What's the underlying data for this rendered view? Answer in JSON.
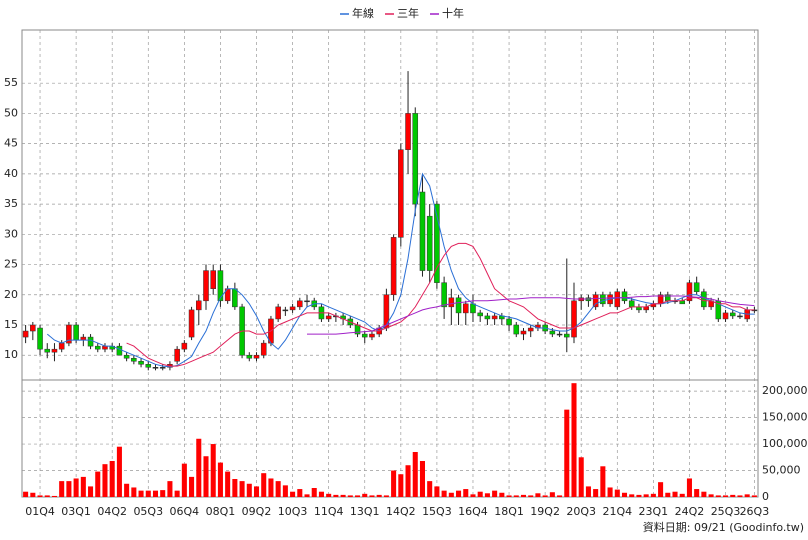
{
  "chart_data": {
    "type": "candlestick",
    "categories": [
      null,
      null,
      "01Q4",
      null,
      null,
      null,
      null,
      "03Q1",
      null,
      null,
      null,
      null,
      "04Q2",
      null,
      null,
      null,
      null,
      "05Q3",
      null,
      null,
      null,
      null,
      "06Q4",
      null,
      null,
      null,
      null,
      "08Q1",
      null,
      null,
      null,
      null,
      "09Q2",
      null,
      null,
      null,
      null,
      "10Q3",
      null,
      null,
      null,
      null,
      "11Q4",
      null,
      null,
      null,
      null,
      "13Q1",
      null,
      null,
      null,
      null,
      "14Q2",
      null,
      null,
      null,
      null,
      "15Q3",
      null,
      null,
      null,
      null,
      "16Q4",
      null,
      null,
      null,
      null,
      "18Q1",
      null,
      null,
      null,
      null,
      "19Q2",
      null,
      null,
      null,
      null,
      "20Q3",
      null,
      null,
      null,
      null,
      "21Q4",
      null,
      null,
      null,
      null,
      "23Q1",
      null,
      null,
      null,
      null,
      "24Q2",
      null,
      null,
      null,
      null,
      "25Q3",
      null,
      null,
      null,
      "26Q3"
    ],
    "open": [
      13,
      14,
      14.5,
      11,
      10.5,
      11,
      12,
      15,
      12.5,
      13,
      11.5,
      11,
      11.5,
      11.5,
      10,
      9.5,
      9,
      8.5,
      8,
      8,
      8,
      9,
      11,
      13,
      17.5,
      19,
      21,
      24,
      19,
      21,
      18,
      10,
      9.5,
      10,
      12,
      16,
      17.5,
      17.5,
      18,
      19,
      19,
      18,
      16,
      16.5,
      16.5,
      16,
      15,
      13.5,
      13,
      13.5,
      14.5,
      20,
      29.5,
      44,
      50,
      37,
      33,
      35,
      22,
      18,
      19.5,
      17,
      18.5,
      17,
      16.5,
      16,
      16.5,
      16,
      15,
      13.5,
      14,
      14.5,
      15,
      14,
      13.5,
      13.5,
      13,
      19,
      19.5,
      18,
      20,
      18.5,
      18,
      20.5,
      19,
      18,
      17.5,
      18,
      18.5,
      20,
      19,
      19,
      19,
      22,
      20.5,
      18,
      19,
      16,
      17,
      16.5,
      16,
      17.5
    ],
    "high": [
      15,
      15.5,
      15,
      12,
      12,
      12.5,
      15.5,
      15.5,
      13.5,
      13.5,
      12,
      12,
      12,
      12,
      10.5,
      10,
      9.5,
      9,
      8.5,
      8.5,
      9,
      11.5,
      12.5,
      18,
      20,
      25,
      25,
      25,
      21.5,
      22,
      18.5,
      10.5,
      10.5,
      12.5,
      16.5,
      18.5,
      18,
      18.5,
      19.5,
      20,
      19.5,
      18.5,
      17,
      17,
      17,
      16.5,
      15.5,
      14,
      14,
      15,
      21,
      30,
      45,
      57,
      51,
      40,
      35,
      35.5,
      23,
      21,
      20,
      19,
      20,
      17.5,
      17,
      17,
      17,
      16.5,
      15.5,
      14.5,
      15,
      15.5,
      15.5,
      14.5,
      14,
      26,
      22,
      20,
      20,
      20.5,
      20.5,
      20.5,
      21,
      21,
      19.5,
      18.5,
      18.5,
      19,
      20.5,
      20.5,
      19.5,
      19.5,
      22.5,
      23,
      21,
      19.5,
      19.5,
      17.5,
      17.5,
      17,
      18,
      18
    ],
    "low": [
      12,
      12.5,
      10,
      9.5,
      9,
      10.5,
      11.5,
      12,
      11.5,
      11,
      10.5,
      10.5,
      10.5,
      10,
      9,
      8.5,
      8,
      7.5,
      7.5,
      7.5,
      7.5,
      8.5,
      10.5,
      12.5,
      15,
      17.5,
      20,
      18,
      18.5,
      17.5,
      9.5,
      9,
      9,
      9.5,
      11.5,
      15.5,
      16.5,
      17,
      17.5,
      18,
      17.5,
      15.5,
      15.5,
      15.5,
      15,
      14.5,
      13,
      12,
      12.5,
      13,
      14,
      19,
      28,
      40,
      33,
      23,
      22,
      21,
      16,
      15,
      15,
      15,
      15.5,
      15.5,
      15,
      15,
      15,
      14,
      13,
      12.5,
      13,
      14,
      13.5,
      13,
      13,
      10.5,
      12,
      17.5,
      18,
      17.5,
      18,
      18,
      17.5,
      18.5,
      17.5,
      17,
      17,
      17.5,
      18,
      18.5,
      18.5,
      18.5,
      18.5,
      20,
      17.5,
      17.5,
      15.5,
      15.5,
      16,
      16,
      15.5,
      17
    ],
    "close": [
      14,
      15,
      11,
      10.5,
      11,
      12,
      15,
      12.5,
      13,
      11.5,
      11,
      11.5,
      11,
      10,
      9.5,
      9,
      8.5,
      8,
      8,
      8,
      8.5,
      11,
      12,
      17.5,
      19,
      24,
      24,
      19,
      21,
      18,
      10,
      9.5,
      10,
      12,
      16,
      18,
      17.5,
      18,
      19,
      19,
      18,
      16,
      16.5,
      16.5,
      16,
      15,
      13.5,
      13,
      13.5,
      14.5,
      20,
      29.5,
      44,
      50,
      35,
      24,
      24,
      22,
      18,
      19.5,
      17,
      18.5,
      17,
      16.5,
      16,
      16.5,
      16,
      15,
      13.5,
      14,
      14.5,
      15,
      14,
      13.5,
      13.5,
      13,
      19,
      19.5,
      19,
      20,
      18.5,
      20,
      20.5,
      19,
      18,
      17.5,
      18,
      18.5,
      20,
      19,
      19,
      18.5,
      22,
      20.5,
      18,
      19,
      16,
      17,
      16.5,
      16.5,
      17.5,
      17.5
    ],
    "up_color": "#ff0000",
    "down_color": "#00c800",
    "series": [
      {
        "name": "年線",
        "color": "#2a6fd6",
        "values": [
          null,
          null,
          null,
          13.5,
          12.5,
          12,
          12.5,
          12.5,
          12.5,
          12.5,
          12,
          11.5,
          11.5,
          11,
          10.5,
          10,
          9.5,
          9,
          8.5,
          8.2,
          8.1,
          8.3,
          9,
          9.8,
          12,
          14,
          17,
          19.5,
          21,
          21,
          20,
          18.5,
          16.5,
          14,
          12,
          11,
          12.5,
          14.5,
          16.5,
          18,
          18.5,
          18.5,
          18,
          17.5,
          17,
          16.5,
          16,
          15.5,
          14.5,
          14,
          15,
          17,
          20,
          26,
          34,
          40,
          38,
          33,
          28,
          24,
          21,
          19.5,
          18.5,
          18,
          17.5,
          17,
          16.5,
          16.3,
          16,
          15.5,
          15,
          14.5,
          14.5,
          14.2,
          14,
          14,
          14.5,
          15.5,
          17,
          18.5,
          19,
          19.3,
          19.5,
          19.5,
          19.3,
          19,
          18.7,
          18.5,
          18.5,
          18.7,
          19,
          19.5,
          20,
          20,
          19.5,
          19,
          18.5,
          18,
          17.5,
          17,
          16.8,
          16.8
        ]
      },
      {
        "name": "三年",
        "color": "#e0205a",
        "values": [
          null,
          null,
          null,
          null,
          null,
          null,
          null,
          null,
          null,
          null,
          null,
          null,
          null,
          null,
          12,
          11.5,
          10.5,
          9.5,
          9,
          8.5,
          8.2,
          8.2,
          8.5,
          9,
          9.5,
          10,
          10.5,
          11.5,
          12.5,
          13.5,
          14,
          14,
          13.5,
          13.5,
          14,
          15,
          15.5,
          16,
          16.5,
          17,
          17,
          17,
          17,
          16.5,
          16,
          15.5,
          15,
          14.5,
          14,
          14,
          14.5,
          15,
          15.5,
          16.5,
          18,
          20,
          22,
          24.5,
          26.5,
          28,
          28.5,
          28.5,
          28,
          26,
          23.5,
          21,
          20,
          19,
          18.5,
          18,
          17,
          16,
          15.5,
          15,
          14.5,
          14.5,
          14.5,
          15,
          15.5,
          16,
          16.5,
          17,
          17,
          17.5,
          18,
          18,
          18,
          18.5,
          18.5,
          19,
          19,
          19,
          19.5,
          19.5,
          19,
          19,
          18.5,
          18.5,
          18,
          18,
          17.5,
          17.5
        ]
      },
      {
        "name": "十年",
        "color": "#a020c8",
        "values": [
          null,
          null,
          null,
          null,
          null,
          null,
          null,
          null,
          null,
          null,
          null,
          null,
          null,
          null,
          null,
          null,
          null,
          null,
          null,
          null,
          null,
          null,
          null,
          null,
          null,
          null,
          null,
          null,
          null,
          null,
          null,
          null,
          null,
          null,
          null,
          null,
          null,
          null,
          null,
          13.5,
          13.5,
          13.5,
          13.5,
          13.5,
          13.6,
          13.7,
          13.8,
          13.9,
          14,
          14.5,
          15,
          15.5,
          16,
          16.5,
          17,
          17.5,
          17.8,
          18,
          18.3,
          18.5,
          18.7,
          18.8,
          19,
          19,
          19,
          19.1,
          19.2,
          19.3,
          19.3,
          19.4,
          19.5,
          19.5,
          19.5,
          19.5,
          19.5,
          19.4,
          19.3,
          19.3,
          19.3,
          19.4,
          19.4,
          19.5,
          19.5,
          19.5,
          19.6,
          19.7,
          19.7,
          19.8,
          19.8,
          19.8,
          19.8,
          19.8,
          19.7,
          19.6,
          19.5,
          19.3,
          19,
          18.8,
          18.6,
          18.4,
          18.3,
          18.2
        ]
      }
    ],
    "ylim": [
      5.9,
      63.8
    ],
    "yticks": [
      10,
      15,
      20,
      25,
      30,
      35,
      40,
      45,
      50,
      55
    ],
    "volume": {
      "color": "#ff0000",
      "values": [
        10000,
        8000,
        3000,
        3000,
        2000,
        30000,
        30000,
        35000,
        38000,
        20000,
        48000,
        62000,
        68000,
        95000,
        25000,
        18000,
        12000,
        12000,
        12000,
        13000,
        30000,
        12000,
        63000,
        38000,
        110000,
        77000,
        100000,
        65000,
        48000,
        34000,
        30000,
        25000,
        20000,
        45000,
        35000,
        30000,
        22000,
        10000,
        15000,
        5000,
        17000,
        10000,
        6000,
        4000,
        4000,
        3000,
        3000,
        6000,
        3000,
        4000,
        3000,
        50000,
        43000,
        60000,
        85000,
        68000,
        30000,
        20000,
        12000,
        8000,
        12000,
        15000,
        5000,
        10000,
        7000,
        12000,
        8000,
        3000,
        3000,
        4000,
        3000,
        7000,
        3000,
        9000,
        3000,
        165000,
        215000,
        75000,
        20000,
        15000,
        58000,
        18000,
        14000,
        8000,
        5000,
        4000,
        5000,
        6000,
        28000,
        8000,
        10000,
        6000,
        35000,
        15000,
        10000,
        5000,
        3000,
        3000,
        4000,
        3000,
        5000,
        3000
      ],
      "ylim": [
        0,
        221000
      ],
      "yticks": [
        0,
        {
          "value": 50000,
          "label": "50,000"
        },
        {
          "value": 100000,
          "label": "100,000"
        },
        {
          "value": 150000,
          "label": "150,000"
        },
        {
          "value": 200000,
          "label": "200,000"
        }
      ]
    },
    "grid": true,
    "source": "資料日期: 09/21 (Goodinfo.tw)"
  }
}
